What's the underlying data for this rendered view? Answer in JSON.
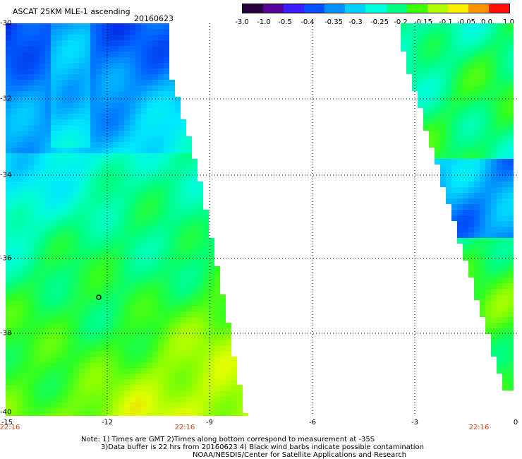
{
  "title": "ASCAT 25KM MLE-1 ascending",
  "date": "20160623",
  "colorbar": {
    "labels": [
      "-3.0",
      "-1.0",
      "-0.5",
      "-0.4",
      "-0.35",
      "-0.3",
      "-0.25",
      "-0.2",
      "-0.15",
      "-0.1",
      "-0.05",
      "0.0",
      "1.0"
    ],
    "colors": [
      "#2a0040",
      "#58009a",
      "#3a1cff",
      "#0050ff",
      "#0090ff",
      "#00d0ff",
      "#00ffe0",
      "#00ff80",
      "#40ff00",
      "#b0ff00",
      "#ffee00",
      "#ff9000",
      "#ff1000"
    ]
  },
  "map": {
    "lon_ticks": [
      "-15",
      "-12",
      "-9",
      "-6",
      "-3",
      "0"
    ],
    "lat_ticks": [
      "-30",
      "-32",
      "-34",
      "-36",
      "-38",
      "-40"
    ],
    "swath_times": [
      "22:16",
      "22:16",
      "22:16"
    ]
  },
  "notes": [
    "Note: 1) Times are GMT 2)Times along bottom correspond to measurement at -35S",
    "3)Data buffer is 22 hrs from 20160623 4) Black wind barbs indicate possible contamination",
    "NOAA/NESDIS/Center for Satellite Applications and Research"
  ]
}
